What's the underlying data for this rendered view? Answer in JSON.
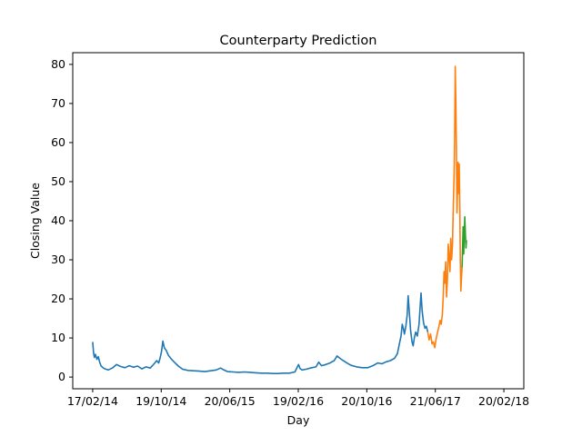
{
  "chart_data": {
    "type": "line",
    "title": "Counterparty Prediction",
    "xlabel": "Day",
    "ylabel": "Closing Value",
    "x_tick_labels": [
      "17/02/14",
      "19/10/14",
      "20/06/15",
      "19/02/16",
      "20/10/16",
      "21/06/17",
      "20/02/18"
    ],
    "x_ticks": [
      0,
      244,
      488,
      732,
      976,
      1220,
      1464
    ],
    "y_ticks": [
      0,
      10,
      20,
      30,
      40,
      50,
      60,
      70,
      80
    ],
    "xlim": [
      -71,
      1535
    ],
    "ylim": [
      -3,
      83
    ],
    "grid": false,
    "legend": "none",
    "series": [
      {
        "color": "#1f77b4",
        "points": [
          [
            0,
            9.0
          ],
          [
            3,
            6.2
          ],
          [
            6,
            5.0
          ],
          [
            10,
            5.8
          ],
          [
            15,
            4.5
          ],
          [
            20,
            5.2
          ],
          [
            25,
            3.8
          ],
          [
            30,
            2.8
          ],
          [
            40,
            2.2
          ],
          [
            55,
            1.8
          ],
          [
            70,
            2.3
          ],
          [
            85,
            3.2
          ],
          [
            100,
            2.7
          ],
          [
            115,
            2.4
          ],
          [
            130,
            2.9
          ],
          [
            145,
            2.5
          ],
          [
            160,
            2.8
          ],
          [
            175,
            2.1
          ],
          [
            190,
            2.6
          ],
          [
            205,
            2.3
          ],
          [
            220,
            3.5
          ],
          [
            228,
            4.2
          ],
          [
            235,
            3.6
          ],
          [
            240,
            4.8
          ],
          [
            245,
            6.5
          ],
          [
            250,
            9.2
          ],
          [
            255,
            7.5
          ],
          [
            262,
            6.8
          ],
          [
            270,
            5.5
          ],
          [
            280,
            4.6
          ],
          [
            295,
            3.5
          ],
          [
            305,
            2.8
          ],
          [
            320,
            2.0
          ],
          [
            340,
            1.7
          ],
          [
            360,
            1.6
          ],
          [
            380,
            1.5
          ],
          [
            400,
            1.4
          ],
          [
            420,
            1.6
          ],
          [
            440,
            1.8
          ],
          [
            455,
            2.3
          ],
          [
            465,
            1.9
          ],
          [
            480,
            1.4
          ],
          [
            500,
            1.3
          ],
          [
            520,
            1.2
          ],
          [
            540,
            1.3
          ],
          [
            560,
            1.2
          ],
          [
            580,
            1.1
          ],
          [
            600,
            1.0
          ],
          [
            620,
            1.0
          ],
          [
            640,
            0.9
          ],
          [
            660,
            0.9
          ],
          [
            680,
            1.0
          ],
          [
            700,
            1.0
          ],
          [
            720,
            1.3
          ],
          [
            728,
            2.5
          ],
          [
            733,
            3.2
          ],
          [
            738,
            2.2
          ],
          [
            745,
            1.8
          ],
          [
            760,
            2.0
          ],
          [
            780,
            2.4
          ],
          [
            795,
            2.6
          ],
          [
            805,
            3.8
          ],
          [
            815,
            2.9
          ],
          [
            830,
            3.2
          ],
          [
            845,
            3.6
          ],
          [
            860,
            4.2
          ],
          [
            870,
            5.4
          ],
          [
            880,
            4.8
          ],
          [
            890,
            4.3
          ],
          [
            905,
            3.6
          ],
          [
            920,
            3.0
          ],
          [
            940,
            2.6
          ],
          [
            960,
            2.4
          ],
          [
            980,
            2.4
          ],
          [
            1000,
            3.0
          ],
          [
            1015,
            3.6
          ],
          [
            1030,
            3.4
          ],
          [
            1045,
            3.9
          ],
          [
            1060,
            4.2
          ],
          [
            1075,
            4.8
          ],
          [
            1085,
            6.0
          ],
          [
            1092,
            8.5
          ],
          [
            1098,
            10.5
          ],
          [
            1102,
            13.5
          ],
          [
            1106,
            12.5
          ],
          [
            1110,
            11.0
          ],
          [
            1115,
            13.0
          ],
          [
            1120,
            16.0
          ],
          [
            1123,
            20.8
          ],
          [
            1127,
            17.0
          ],
          [
            1132,
            12.0
          ],
          [
            1137,
            9.0
          ],
          [
            1141,
            8.0
          ],
          [
            1145,
            10.0
          ],
          [
            1150,
            11.5
          ],
          [
            1156,
            10.5
          ],
          [
            1162,
            13.5
          ],
          [
            1166,
            18.0
          ],
          [
            1169,
            21.5
          ],
          [
            1173,
            17.0
          ],
          [
            1178,
            14.0
          ],
          [
            1183,
            12.5
          ],
          [
            1188,
            13.0
          ],
          [
            1193,
            11.5
          ]
        ]
      },
      {
        "color": "#ff7f0e",
        "points": [
          [
            1193,
            11.5
          ],
          [
            1198,
            9.5
          ],
          [
            1203,
            11.0
          ],
          [
            1208,
            8.5
          ],
          [
            1213,
            9.0
          ],
          [
            1218,
            7.5
          ],
          [
            1223,
            9.8
          ],
          [
            1228,
            11.5
          ],
          [
            1233,
            13.0
          ],
          [
            1237,
            14.5
          ],
          [
            1241,
            13.5
          ],
          [
            1245,
            16.0
          ],
          [
            1248,
            20.5
          ],
          [
            1251,
            27.0
          ],
          [
            1254,
            24.0
          ],
          [
            1257,
            29.5
          ],
          [
            1260,
            20.5
          ],
          [
            1263,
            25.0
          ],
          [
            1266,
            34.0
          ],
          [
            1269,
            31.0
          ],
          [
            1272,
            27.0
          ],
          [
            1275,
            35.5
          ],
          [
            1278,
            30.0
          ],
          [
            1281,
            34.0
          ],
          [
            1284,
            44.0
          ],
          [
            1287,
            52.0
          ],
          [
            1289,
            62.0
          ],
          [
            1291,
            79.5
          ],
          [
            1293,
            70.0
          ],
          [
            1295,
            58.0
          ],
          [
            1297,
            42.0
          ],
          [
            1299,
            48.0
          ],
          [
            1301,
            55.0
          ],
          [
            1303,
            47.0
          ],
          [
            1305,
            54.5
          ],
          [
            1307,
            44.0
          ],
          [
            1309,
            30.0
          ],
          [
            1311,
            22.0
          ],
          [
            1313,
            25.0
          ],
          [
            1315,
            28.0
          ]
        ]
      },
      {
        "color": "#2ca02c",
        "points": [
          [
            1315,
            28.0
          ],
          [
            1317,
            33.0
          ],
          [
            1319,
            38.5
          ],
          [
            1321,
            31.5
          ],
          [
            1323,
            36.0
          ],
          [
            1325,
            41.0
          ],
          [
            1327,
            36.5
          ],
          [
            1329,
            33.0
          ],
          [
            1331,
            35.0
          ]
        ]
      }
    ]
  }
}
